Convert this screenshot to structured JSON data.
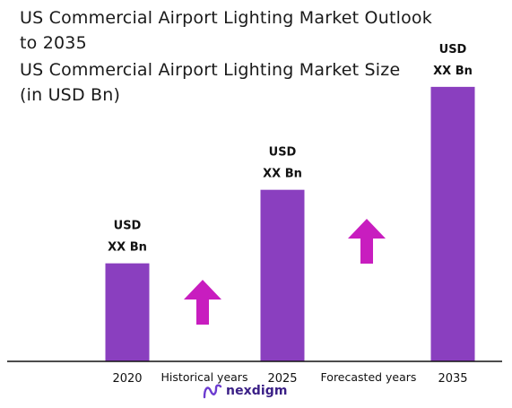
{
  "chart_data": {
    "type": "bar",
    "title": "US Commercial Airport Lighting Market Outlook to 2035",
    "subtitle": "US Commercial Airport Lighting Market Size (in USD Bn)",
    "categories": [
      "2020",
      "2025",
      "2035"
    ],
    "values": [
      1.0,
      1.75,
      2.8
    ],
    "data_labels": [
      [
        "USD",
        "XX Bn"
      ],
      [
        "USD",
        "XX Bn"
      ],
      [
        "USD",
        "XX Bn"
      ]
    ],
    "period_labels": [
      "Historical years",
      "Forecasted years"
    ],
    "ylim": [
      0,
      3.0
    ],
    "grid": false,
    "legend": "none",
    "bar_color": "#8a3fbf",
    "arrow_color": "#c81dbf"
  },
  "brand": {
    "name": "nexdigm",
    "color": "#3a1f86"
  }
}
